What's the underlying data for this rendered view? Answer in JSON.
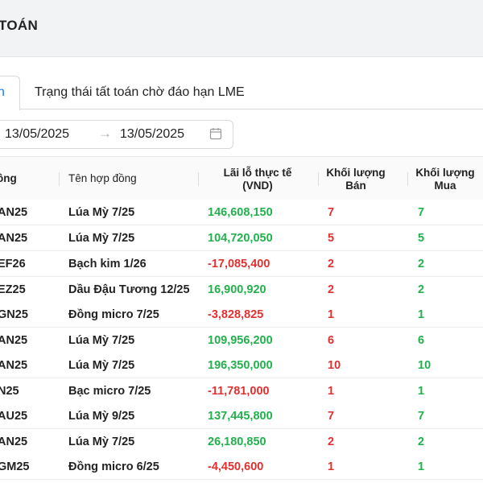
{
  "header": {
    "title": "TOÁN"
  },
  "tabs": [
    {
      "label": "n",
      "active": true
    },
    {
      "label": "Trạng thái tất toán chờ đáo hạn LME",
      "active": false
    }
  ],
  "date_filter": {
    "start": "13/05/2025",
    "separator": "→",
    "end": "13/05/2025"
  },
  "table": {
    "columns": {
      "code": "ồng",
      "name": "Tên hợp đồng",
      "pnl_line1": "Lãi lỗ thực tế",
      "pnl_line2": "(VND)",
      "sell_line1": "Khối lượng",
      "sell_line2": "Bán",
      "buy_line1": "Khối lượng",
      "buy_line2": "Mua"
    },
    "rows": [
      {
        "code": "AN25",
        "name": "Lúa Mỳ 7/25",
        "pnl": "146,608,150",
        "pnl_sign": "pos",
        "sell": "7",
        "buy": "7"
      },
      {
        "code": "AN25",
        "name": "Lúa Mỳ 7/25",
        "pnl": "104,720,050",
        "pnl_sign": "pos",
        "sell": "5",
        "buy": "5"
      },
      {
        "code": "EF26",
        "name": "Bạch kim 1/26",
        "pnl": "-17,085,400",
        "pnl_sign": "neg",
        "sell": "2",
        "buy": "2"
      },
      {
        "code": "EZ25",
        "name": "Dầu Đậu Tương 12/25",
        "pnl": "16,900,920",
        "pnl_sign": "pos",
        "sell": "2",
        "buy": "2"
      },
      {
        "code": "GN25",
        "name": "Đồng micro 7/25",
        "pnl": "-3,828,825",
        "pnl_sign": "neg",
        "sell": "1",
        "buy": "1"
      },
      {
        "code": "AN25",
        "name": "Lúa Mỳ 7/25",
        "pnl": "109,956,200",
        "pnl_sign": "pos",
        "sell": "6",
        "buy": "6"
      },
      {
        "code": "AN25",
        "name": "Lúa Mỳ 7/25",
        "pnl": "196,350,000",
        "pnl_sign": "pos",
        "sell": "10",
        "buy": "10"
      },
      {
        "code": "N25",
        "name": "Bạc micro 7/25",
        "pnl": "-11,781,000",
        "pnl_sign": "neg",
        "sell": "1",
        "buy": "1"
      },
      {
        "code": "AU25",
        "name": "Lúa Mỳ 9/25",
        "pnl": "137,445,800",
        "pnl_sign": "pos",
        "sell": "7",
        "buy": "7"
      },
      {
        "code": "AN25",
        "name": "Lúa Mỳ 7/25",
        "pnl": "26,180,850",
        "pnl_sign": "pos",
        "sell": "2",
        "buy": "2"
      },
      {
        "code": "GM25",
        "name": "Đồng micro 6/25",
        "pnl": "-4,450,600",
        "pnl_sign": "neg",
        "sell": "1",
        "buy": "1"
      }
    ]
  },
  "colors": {
    "positive": "#22b14c",
    "negative": "#e03131",
    "accent": "#1677ff"
  }
}
